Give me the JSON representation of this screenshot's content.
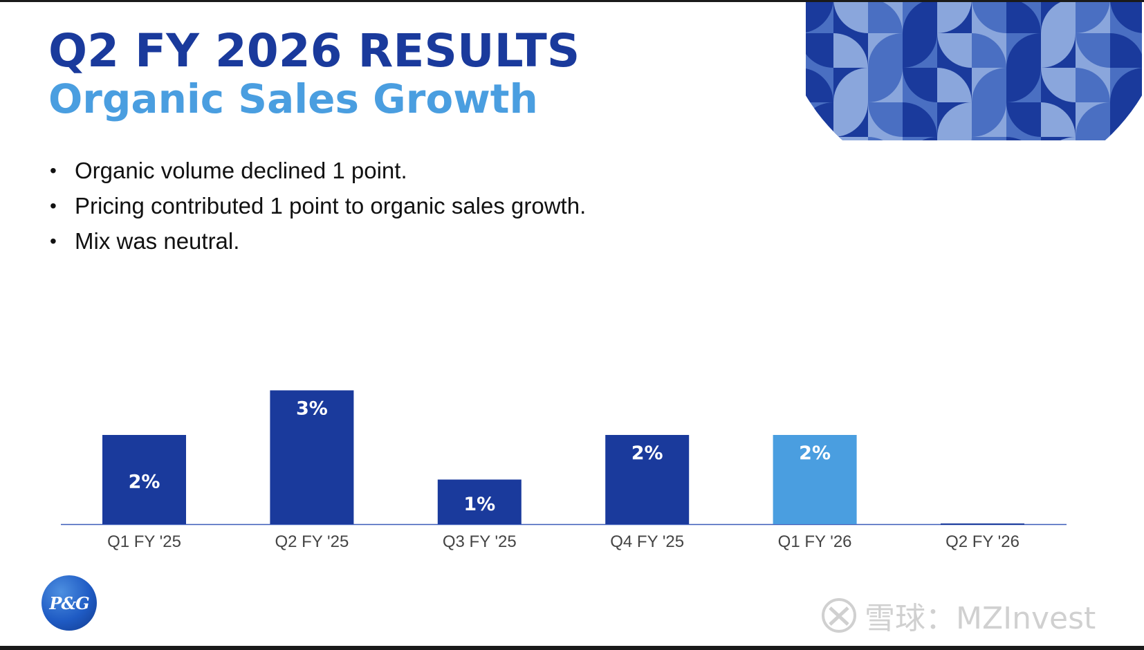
{
  "header": {
    "title": "Q2 FY 2026 RESULTS",
    "subtitle": "Organic Sales Growth"
  },
  "bullets": [
    "Organic volume declined 1 point.",
    "Pricing contributed 1 point to organic sales growth.",
    "Mix was neutral."
  ],
  "logo": {
    "text": "P&G"
  },
  "watermark": {
    "text": "雪球：MZInvest"
  },
  "colors": {
    "title": "#1a3a9c",
    "subtitle": "#4a9ee0",
    "bar": "#1a3a9c",
    "bar_highlight": "#4a9ee0",
    "axis": "#3a5ab8",
    "pattern_dark": "#1a3a9c",
    "pattern_mid": "#4a6fc2",
    "pattern_light": "#8aa6dc"
  },
  "chart_data": {
    "type": "bar",
    "title": "",
    "xlabel": "",
    "ylabel": "",
    "ylim": [
      0,
      3
    ],
    "grid": false,
    "categories": [
      "Q1 FY '25",
      "Q2 FY '25",
      "Q3 FY '25",
      "Q4 FY '25",
      "Q1 FY '26",
      "Q2 FY '26"
    ],
    "values": [
      2,
      3,
      1,
      2,
      2,
      0
    ],
    "labels": [
      "2%",
      "3%",
      "1%",
      "2%",
      "2%",
      ""
    ],
    "highlight_index": 4
  }
}
